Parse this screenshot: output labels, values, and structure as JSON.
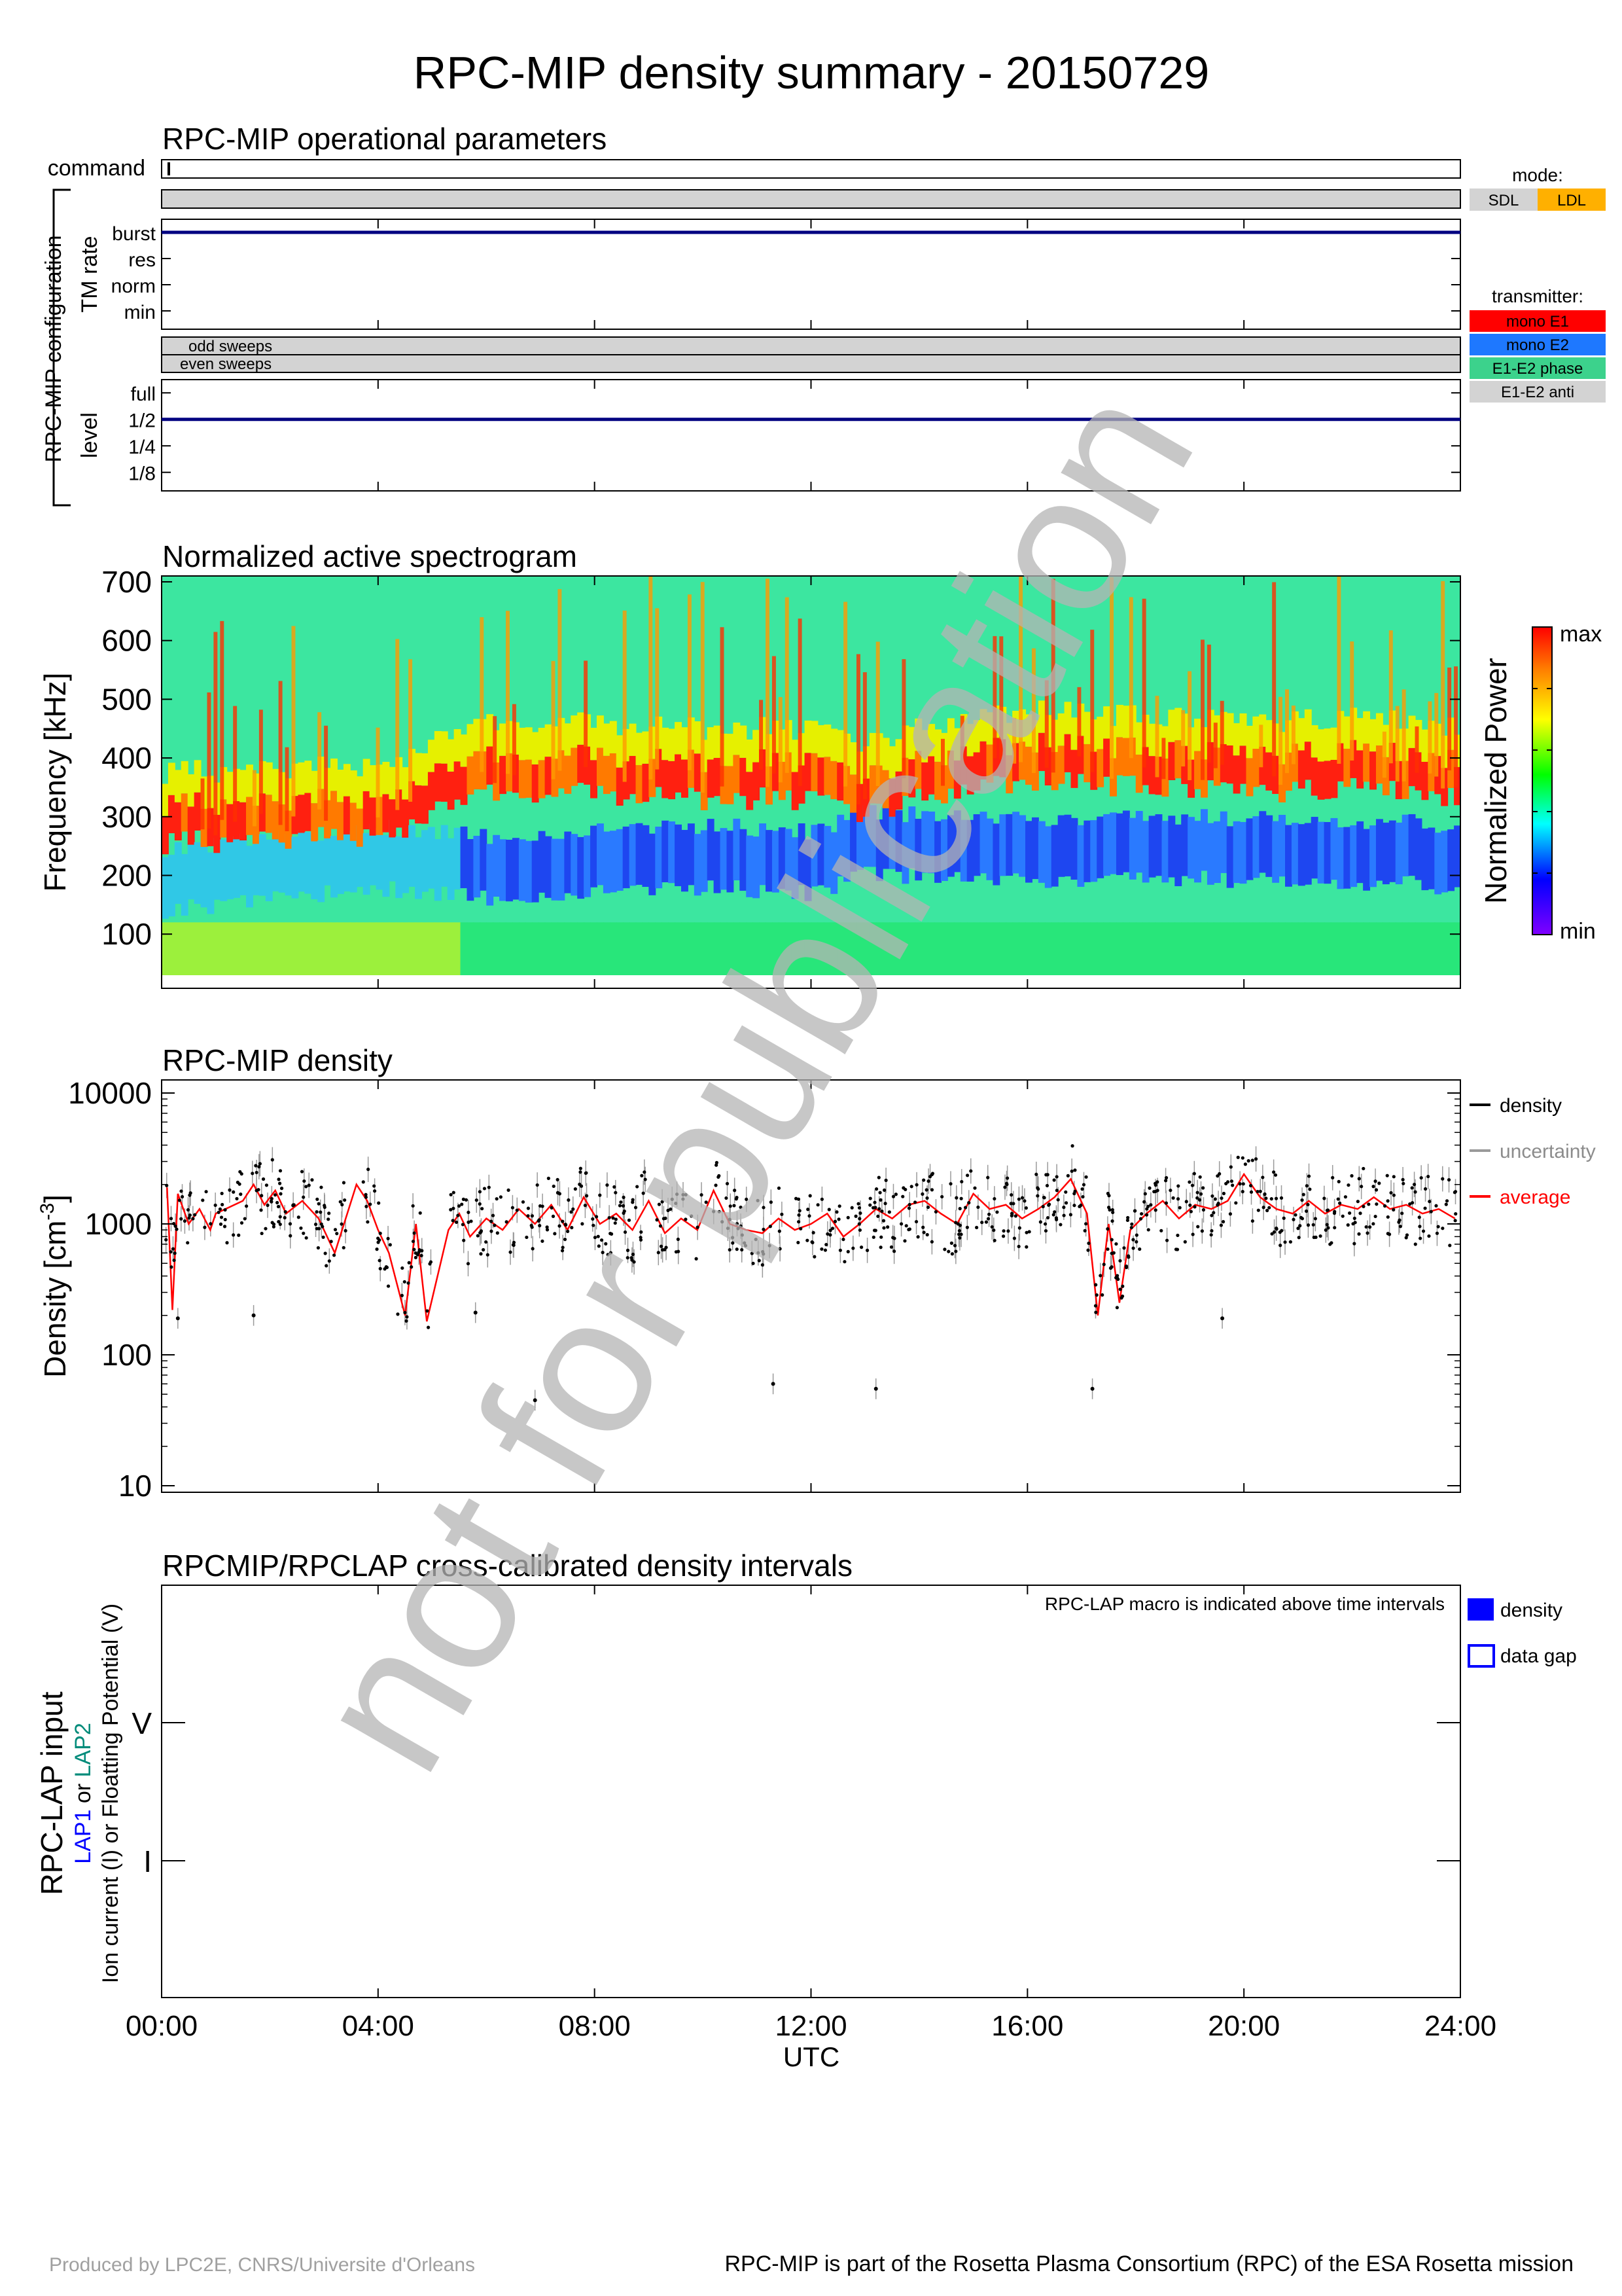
{
  "title": "RPC-MIP density summary - 20150729",
  "panels": {
    "ops": {
      "title": "RPC-MIP operational parameters",
      "command_label": "command",
      "config_label": "RPC-MIP configuration",
      "tm_rate_label": "TM rate",
      "tm_rate_levels": [
        "burst",
        "res",
        "norm",
        "min"
      ],
      "tm_rate_value": "burst",
      "sweeps_labels": [
        "odd sweeps",
        "even sweeps"
      ],
      "level_label": "level",
      "level_levels": [
        "full",
        "1/2",
        "1/4",
        "1/8"
      ],
      "level_value": "1/2",
      "mode_label": "mode:",
      "mode_items": [
        {
          "label": "SDL",
          "color": "#d3d3d3"
        },
        {
          "label": "LDL",
          "color": "#ffb000"
        }
      ],
      "transmitter_label": "transmitter:",
      "transmitter_items": [
        {
          "label": "mono E1",
          "color": "#ff0000"
        },
        {
          "label": "mono E2",
          "color": "#1e78ff"
        },
        {
          "label": "E1-E2 phase",
          "color": "#3cd28c"
        },
        {
          "label": "E1-E2 anti",
          "color": "#d3d3d3"
        }
      ],
      "line_color": "#000080"
    },
    "spectrogram": {
      "title": "Normalized active spectrogram",
      "ylabel": "Frequency [kHz]",
      "yticks": [
        "100",
        "200",
        "300",
        "400",
        "500",
        "600",
        "700"
      ],
      "colorbar_label": "Normalized Power",
      "colorbar_max": "max",
      "colorbar_min": "min"
    },
    "density": {
      "title": "RPC-MIP density",
      "ylabel_main": "Density [cm",
      "ylabel_sup": "-3",
      "ylabel_close": "]",
      "yticks": [
        "10",
        "100",
        "1000",
        "10000"
      ],
      "legend": [
        {
          "label": "density",
          "color": "#000000"
        },
        {
          "label": "uncertainty",
          "color": "#9a9a9a"
        },
        {
          "label": "average",
          "color": "#ff0000"
        }
      ]
    },
    "lap": {
      "title": "RPCMIP/RPCLAP cross-calibrated density intervals",
      "note": "RPC-LAP macro is indicated above time intervals",
      "ylabel_main": "RPC-LAP input",
      "ylabel_lap1": "LAP1",
      "ylabel_or": " or ",
      "ylabel_lap2": "LAP2",
      "ylabel_sub": "Ion current (I) or Floatting Potential (V)",
      "yticks": [
        "V",
        "I"
      ],
      "legend": [
        {
          "label": "density",
          "color": "#0000ff"
        },
        {
          "label": "data gap",
          "color": "#0000ff"
        }
      ],
      "lap1_color": "#0000ff",
      "lap2_color": "#008b7a"
    }
  },
  "xaxis": {
    "ticks": [
      "00:00",
      "04:00",
      "08:00",
      "12:00",
      "16:00",
      "20:00",
      "24:00"
    ],
    "label": "UTC"
  },
  "watermark": "not for publication",
  "footer_left": "Produced by LPC2E, CNRS/Universite d'Orleans",
  "footer_right": "RPC-MIP is part of the Rosetta Plasma Consortium (RPC) of the ESA Rosetta mission",
  "chart_data": [
    {
      "type": "line",
      "name": "TM rate",
      "x_range_hours": [
        0,
        24
      ],
      "categories": [
        "burst",
        "res",
        "norm",
        "min"
      ],
      "value": "burst"
    },
    {
      "type": "line",
      "name": "level",
      "x_range_hours": [
        0,
        24
      ],
      "categories": [
        "full",
        "1/2",
        "1/4",
        "1/8"
      ],
      "value": "1/2"
    },
    {
      "type": "heatmap",
      "title": "Normalized active spectrogram",
      "xlabel": "UTC",
      "ylabel": "Frequency [kHz]",
      "xlim_hours": [
        0,
        24
      ],
      "ylim": [
        30,
        710
      ],
      "hours": [
        0,
        2,
        4,
        6,
        8,
        10,
        12,
        13,
        14,
        16,
        18,
        20,
        22,
        24
      ],
      "hot_band_khz": [
        285,
        290,
        295,
        370,
        370,
        360,
        360,
        330,
        360,
        390,
        380,
        370,
        380,
        360
      ],
      "cold_band_khz": [
        200,
        220,
        240,
        220,
        230,
        240,
        230,
        260,
        260,
        250,
        260,
        250,
        250,
        240
      ]
    },
    {
      "type": "scatter",
      "title": "RPC-MIP density",
      "xlabel": "UTC",
      "ylabel": "Density [cm-3]",
      "yscale": "log",
      "ylim": [
        9,
        13000
      ],
      "xlim_hours": [
        0,
        24
      ],
      "average": {
        "x": [
          0.1,
          0.2,
          0.3,
          0.5,
          0.7,
          0.9,
          1.0,
          1.5,
          1.7,
          1.9,
          2.1,
          2.3,
          2.6,
          2.9,
          3.2,
          3.6,
          3.8,
          4.0,
          4.2,
          4.5,
          4.7,
          4.9,
          5.3,
          5.5,
          5.7,
          6.0,
          6.3,
          6.6,
          6.9,
          7.2,
          7.5,
          7.8,
          8.1,
          8.4,
          8.7,
          9.0,
          9.3,
          9.6,
          9.9,
          10.2,
          10.5,
          10.8,
          11.1,
          11.4,
          11.7,
          12.0,
          12.3,
          12.6,
          12.9,
          13.2,
          13.5,
          13.8,
          14.1,
          14.4,
          14.7,
          15.0,
          15.3,
          15.6,
          15.9,
          16.2,
          16.5,
          16.8,
          17.1,
          17.3,
          17.5,
          17.7,
          17.9,
          18.2,
          18.5,
          18.8,
          19.1,
          19.4,
          19.7,
          20.0,
          20.3,
          20.6,
          20.9,
          21.2,
          21.5,
          21.8,
          22.1,
          22.4,
          22.7,
          23.0,
          23.3,
          23.6,
          23.9
        ],
        "y": [
          1900,
          220,
          1700,
          1000,
          1300,
          900,
          1200,
          1500,
          2000,
          1400,
          1800,
          1200,
          1500,
          1100,
          600,
          2000,
          1500,
          900,
          600,
          200,
          1000,
          180,
          900,
          1200,
          800,
          1100,
          900,
          1300,
          1000,
          1400,
          900,
          1600,
          1000,
          1200,
          900,
          1500,
          850,
          1100,
          900,
          1800,
          1000,
          900,
          850,
          1100,
          900,
          1000,
          1200,
          800,
          1000,
          1300,
          1100,
          1400,
          1500,
          1200,
          1000,
          1700,
          1300,
          1400,
          1100,
          1300,
          1600,
          2200,
          1200,
          200,
          1000,
          250,
          900,
          1200,
          1500,
          1100,
          1400,
          1300,
          1500,
          2400,
          1600,
          1300,
          1200,
          1500,
          1200,
          1400,
          1300,
          1600,
          1300,
          1400,
          1200,
          1300,
          1100
        ]
      },
      "density_points_range": [
        15,
        11000
      ],
      "outliers": [
        {
          "x": 0.3,
          "y": 190
        },
        {
          "x": 1.7,
          "y": 200
        },
        {
          "x": 5.8,
          "y": 210
        },
        {
          "x": 6.9,
          "y": 45
        },
        {
          "x": 11.3,
          "y": 60
        },
        {
          "x": 13.2,
          "y": 55
        },
        {
          "x": 17.2,
          "y": 55
        },
        {
          "x": 19.6,
          "y": 190
        }
      ]
    },
    {
      "type": "bar",
      "title": "RPCMIP/RPCLAP cross-calibrated density intervals",
      "xlabel": "UTC",
      "categories": [
        "V",
        "I"
      ],
      "series": []
    }
  ]
}
